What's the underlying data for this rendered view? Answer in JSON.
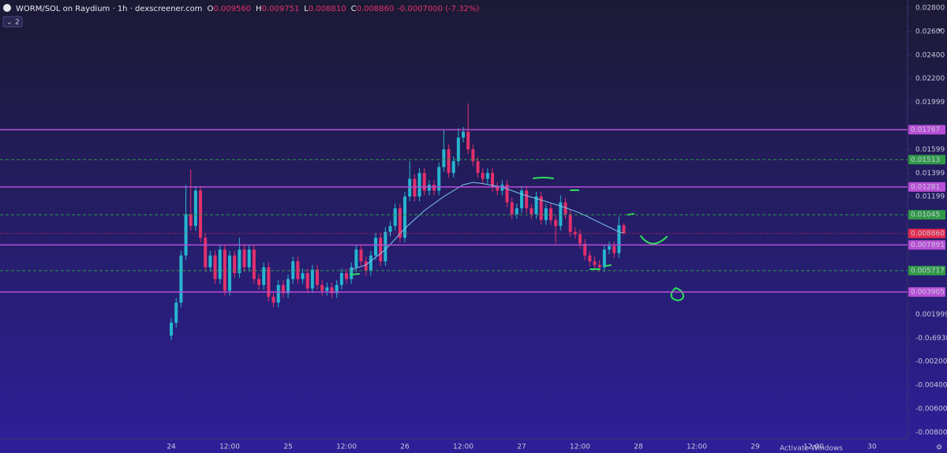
{
  "chart_data": {
    "type": "candlestick",
    "title": "WORM/SOL on Raydium · 1h · dexscreener.com",
    "header_values": [
      {
        "label": "O",
        "value": "0.009560"
      },
      {
        "label": "H",
        "value": "0.009751"
      },
      {
        "label": "L",
        "value": "0.008810"
      },
      {
        "label": "C",
        "value": "0.008860"
      }
    ],
    "change": "-0.0007000 (-7.32%)",
    "indicator_count": "2",
    "watermark": "Activate Windows",
    "up_color": "#26b6cf",
    "down_color": "#e3306b",
    "ylim": [
      -0.00855,
      0.02867
    ],
    "yticks": [
      {
        "value": 0.028,
        "label": "0.02800"
      },
      {
        "value": 0.026,
        "label": "0.02600"
      },
      {
        "value": 0.024,
        "label": "0.02400"
      },
      {
        "value": 0.022,
        "label": "0.02200"
      },
      0.01999,
      0.01599,
      0.01399,
      0.01199,
      0.001999,
      {
        "value": -1.6938e-17,
        "label": "-0.0₁6938"
      },
      {
        "value": -0.002,
        "label": "-0.002000"
      },
      {
        "value": -0.004,
        "label": "-0.004000"
      },
      {
        "value": -0.006,
        "label": "-0.006000"
      },
      {
        "value": -0.008,
        "label": "-0.008000"
      }
    ],
    "xlim": [
      -35.2,
      151.3
    ],
    "xticks": [
      {
        "value": 0,
        "label": "24"
      },
      {
        "value": 12,
        "label": "12:00"
      },
      {
        "value": 24,
        "label": "25"
      },
      {
        "value": 36,
        "label": "12:00"
      },
      {
        "value": 48,
        "label": "26"
      },
      {
        "value": 60,
        "label": "12:00"
      },
      {
        "value": 72,
        "label": "27"
      },
      {
        "value": 84,
        "label": "12:00"
      },
      {
        "value": 96,
        "label": "28"
      },
      {
        "value": 108,
        "label": "12:00"
      },
      {
        "value": 120,
        "label": "29"
      },
      {
        "value": 132,
        "label": "12:00"
      },
      {
        "value": 144,
        "label": "30"
      }
    ],
    "ohlc": [
      [
        0.0002,
        0.0017,
        -0.0002,
        0.0013
      ],
      [
        0.0013,
        0.0034,
        0.0009,
        0.003
      ],
      [
        0.003,
        0.0074,
        0.0026,
        0.007
      ],
      [
        0.007,
        0.013,
        0.0066,
        0.0105
      ],
      [
        0.0105,
        0.0143,
        0.0091,
        0.0095
      ],
      [
        0.0095,
        0.0129,
        0.0091,
        0.0125
      ],
      [
        0.0125,
        0.0129,
        0.0081,
        0.0085
      ],
      [
        0.0085,
        0.0089,
        0.0056,
        0.006
      ],
      [
        0.006,
        0.0074,
        0.0056,
        0.007
      ],
      [
        0.007,
        0.0074,
        0.0046,
        0.005
      ],
      [
        0.005,
        0.0079,
        0.0046,
        0.0075
      ],
      [
        0.0075,
        0.0079,
        0.0036,
        0.004
      ],
      [
        0.004,
        0.0074,
        0.0036,
        0.007
      ],
      [
        0.007,
        0.0074,
        0.0051,
        0.0055
      ],
      [
        0.0055,
        0.0085,
        0.0051,
        0.0075
      ],
      [
        0.0075,
        0.0079,
        0.0056,
        0.006
      ],
      [
        0.006,
        0.0079,
        0.0056,
        0.0075
      ],
      [
        0.0075,
        0.0079,
        0.0046,
        0.005
      ],
      [
        0.005,
        0.0054,
        0.0041,
        0.0045
      ],
      [
        0.0045,
        0.0064,
        0.0041,
        0.006
      ],
      [
        0.006,
        0.0064,
        0.0031,
        0.0035
      ],
      [
        0.0035,
        0.0039,
        0.0026,
        0.003
      ],
      [
        0.003,
        0.0049,
        0.0026,
        0.0045
      ],
      [
        0.0045,
        0.0049,
        0.0034,
        0.0038
      ],
      [
        0.0038,
        0.0054,
        0.0034,
        0.005
      ],
      [
        0.005,
        0.0069,
        0.0046,
        0.0065
      ],
      [
        0.0065,
        0.0069,
        0.0046,
        0.005
      ],
      [
        0.005,
        0.0059,
        0.0046,
        0.0055
      ],
      [
        0.0055,
        0.0059,
        0.0038,
        0.0042
      ],
      [
        0.0042,
        0.0062,
        0.0038,
        0.0058
      ],
      [
        0.0058,
        0.0062,
        0.0041,
        0.0045
      ],
      [
        0.0045,
        0.0049,
        0.0036,
        0.004
      ],
      [
        0.004,
        0.0047,
        0.0036,
        0.0043
      ],
      [
        0.0043,
        0.0047,
        0.0034,
        0.0038
      ],
      [
        0.0038,
        0.0049,
        0.0034,
        0.0045
      ],
      [
        0.0045,
        0.0059,
        0.0041,
        0.0055
      ],
      [
        0.0055,
        0.0059,
        0.0046,
        0.005
      ],
      [
        0.005,
        0.0064,
        0.0046,
        0.006
      ],
      [
        0.006,
        0.0079,
        0.0056,
        0.0075
      ],
      [
        0.0075,
        0.0079,
        0.0061,
        0.0065
      ],
      [
        0.0065,
        0.0069,
        0.0053,
        0.0057
      ],
      [
        0.0057,
        0.0074,
        0.0053,
        0.007
      ],
      [
        0.007,
        0.0089,
        0.0066,
        0.0085
      ],
      [
        0.0085,
        0.0089,
        0.0061,
        0.0065
      ],
      [
        0.0065,
        0.0094,
        0.0061,
        0.009
      ],
      [
        0.009,
        0.0099,
        0.0086,
        0.0095
      ],
      [
        0.0095,
        0.0114,
        0.0091,
        0.011
      ],
      [
        0.011,
        0.0114,
        0.0081,
        0.0085
      ],
      [
        0.0085,
        0.0124,
        0.0081,
        0.012
      ],
      [
        0.012,
        0.015,
        0.0116,
        0.0135
      ],
      [
        0.0135,
        0.0139,
        0.0116,
        0.012
      ],
      [
        0.012,
        0.0144,
        0.0116,
        0.014
      ],
      [
        0.014,
        0.0144,
        0.0121,
        0.0125
      ],
      [
        0.0125,
        0.0134,
        0.0121,
        0.013
      ],
      [
        0.013,
        0.0134,
        0.0121,
        0.0125
      ],
      [
        0.0125,
        0.0149,
        0.0121,
        0.0145
      ],
      [
        0.0145,
        0.0177,
        0.0141,
        0.016
      ],
      [
        0.016,
        0.0164,
        0.0136,
        0.014
      ],
      [
        0.014,
        0.0154,
        0.0136,
        0.015
      ],
      [
        0.015,
        0.0178,
        0.0146,
        0.017
      ],
      [
        0.017,
        0.0179,
        0.0166,
        0.0175
      ],
      [
        0.0175,
        0.0199,
        0.0156,
        0.016
      ],
      [
        0.016,
        0.0164,
        0.0146,
        0.015
      ],
      [
        0.015,
        0.0154,
        0.0136,
        0.014
      ],
      [
        0.014,
        0.0144,
        0.0131,
        0.0135
      ],
      [
        0.0135,
        0.0144,
        0.0131,
        0.014
      ],
      [
        0.014,
        0.0144,
        0.0124,
        0.0128
      ],
      [
        0.0128,
        0.0132,
        0.0121,
        0.0125
      ],
      [
        0.0125,
        0.0134,
        0.0121,
        0.013
      ],
      [
        0.013,
        0.0134,
        0.0111,
        0.0115
      ],
      [
        0.0115,
        0.0119,
        0.0101,
        0.0105
      ],
      [
        0.0105,
        0.0114,
        0.0101,
        0.011
      ],
      [
        0.011,
        0.0129,
        0.0106,
        0.0125
      ],
      [
        0.0125,
        0.0129,
        0.0106,
        0.011
      ],
      [
        0.011,
        0.0114,
        0.0101,
        0.0105
      ],
      [
        0.0105,
        0.0124,
        0.0101,
        0.012
      ],
      [
        0.012,
        0.0124,
        0.0096,
        0.01
      ],
      [
        0.01,
        0.0114,
        0.0096,
        0.011
      ],
      [
        0.011,
        0.0114,
        0.0096,
        0.01
      ],
      [
        0.01,
        0.0104,
        0.008,
        0.0095
      ],
      [
        0.0095,
        0.0121,
        0.0091,
        0.0115
      ],
      [
        0.0115,
        0.0119,
        0.0101,
        0.0105
      ],
      [
        0.0105,
        0.0109,
        0.0086,
        0.009
      ],
      [
        0.009,
        0.0094,
        0.0084,
        0.0088
      ],
      [
        0.0088,
        0.0092,
        0.0076,
        0.008
      ],
      [
        0.008,
        0.0084,
        0.0066,
        0.007
      ],
      [
        0.007,
        0.0074,
        0.0061,
        0.0065
      ],
      [
        0.0065,
        0.0069,
        0.0058,
        0.0062
      ],
      [
        0.0062,
        0.0066,
        0.0056,
        0.006
      ],
      [
        0.006,
        0.0079,
        0.0056,
        0.0075
      ],
      [
        0.0075,
        0.0082,
        0.0071,
        0.0078
      ],
      [
        0.0078,
        0.0082,
        0.0068,
        0.0072
      ],
      [
        0.0072,
        0.0103,
        0.0068,
        0.00956
      ],
      [
        0.00956,
        0.009751,
        0.00881,
        0.00886
      ]
    ],
    "moving_average": {
      "color": "#7cc4ee",
      "x": [
        37,
        40,
        44,
        48,
        52,
        56,
        60,
        62,
        64,
        68,
        72,
        76,
        80,
        84,
        88,
        92,
        93
      ],
      "values": [
        0.0058,
        0.0062,
        0.0075,
        0.0093,
        0.0108,
        0.012,
        0.013,
        0.0132,
        0.0131,
        0.0128,
        0.0122,
        0.0117,
        0.0112,
        0.0106,
        0.0098,
        0.009,
        0.0089
      ]
    },
    "levels": [
      {
        "value": 0.01767,
        "color": "#b84fd6",
        "style": "solid"
      },
      {
        "value": 0.01513,
        "color": "#2f9a46",
        "style": "dashed"
      },
      {
        "value": 0.01281,
        "color": "#b84fd6",
        "style": "solid"
      },
      {
        "value": 0.01045,
        "color": "#2f9a46",
        "style": "dashed"
      },
      {
        "value": 0.00886,
        "label": "0.008860",
        "color": "#e5294b",
        "style": "dotted"
      },
      {
        "value": 0.007891,
        "color": "#b84fd6",
        "style": "solid"
      },
      {
        "value": 0.005717,
        "color": "#2f9a46",
        "style": "dashed"
      },
      {
        "value": 0.003905,
        "color": "#b84fd6",
        "style": "solid"
      }
    ]
  }
}
